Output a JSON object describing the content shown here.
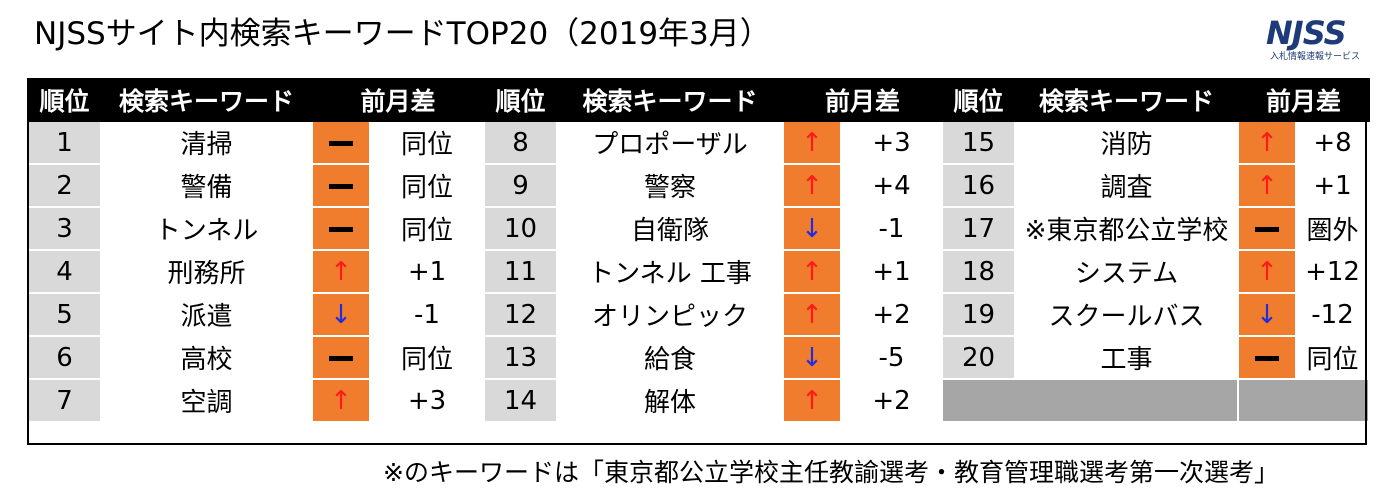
{
  "title": "NJSSサイト内検索キーワードTOP20（2019年3月）",
  "logo": {
    "main": "NJSS",
    "sub": "入札情報速報サービス"
  },
  "headers": {
    "rank": "順位",
    "keyword": "検索キーワード",
    "diff": "前月差"
  },
  "colors": {
    "header_bg": "#000000",
    "rank_bg": "#d9d9d9",
    "arrow_bg": "#f07c2e",
    "up": "#ff1a1a",
    "down": "#1f2de0",
    "empty": "#a6a6a6"
  },
  "columns": [
    {
      "rows": [
        {
          "rank": "1",
          "keyword": "清掃",
          "trend": "same",
          "diff": "同位"
        },
        {
          "rank": "2",
          "keyword": "警備",
          "trend": "same",
          "diff": "同位"
        },
        {
          "rank": "3",
          "keyword": "トンネル",
          "trend": "same",
          "diff": "同位"
        },
        {
          "rank": "4",
          "keyword": "刑務所",
          "trend": "up",
          "diff": "+1"
        },
        {
          "rank": "5",
          "keyword": "派遣",
          "trend": "down",
          "diff": "-1"
        },
        {
          "rank": "6",
          "keyword": "高校",
          "trend": "same",
          "diff": "同位"
        },
        {
          "rank": "7",
          "keyword": "空調",
          "trend": "up",
          "diff": "+3"
        }
      ]
    },
    {
      "rows": [
        {
          "rank": "8",
          "keyword": "プロポーザル",
          "trend": "up",
          "diff": "+3"
        },
        {
          "rank": "9",
          "keyword": "警察",
          "trend": "up",
          "diff": "+4"
        },
        {
          "rank": "10",
          "keyword": "自衛隊",
          "trend": "down",
          "diff": "-1"
        },
        {
          "rank": "11",
          "keyword": "トンネル 工事",
          "trend": "up",
          "diff": "+1"
        },
        {
          "rank": "12",
          "keyword": "オリンピック",
          "trend": "up",
          "diff": "+2"
        },
        {
          "rank": "13",
          "keyword": "給食",
          "trend": "down",
          "diff": "-5"
        },
        {
          "rank": "14",
          "keyword": "解体",
          "trend": "up",
          "diff": "+2"
        }
      ]
    },
    {
      "rows": [
        {
          "rank": "15",
          "keyword": "消防",
          "trend": "up",
          "diff": "+8"
        },
        {
          "rank": "16",
          "keyword": "調査",
          "trend": "up",
          "diff": "+1"
        },
        {
          "rank": "17",
          "keyword": "※東京都公立学校",
          "trend": "same",
          "diff": "圏外"
        },
        {
          "rank": "18",
          "keyword": "システム",
          "trend": "up",
          "diff": "+12"
        },
        {
          "rank": "19",
          "keyword": "スクールバス",
          "trend": "down",
          "diff": "-12"
        },
        {
          "rank": "20",
          "keyword": "工事",
          "trend": "same",
          "diff": "同位"
        },
        null
      ]
    }
  ],
  "arrows": {
    "up": "↑",
    "down": "↓"
  },
  "footnote": "※のキーワードは「東京都公立学校主任教諭選考・教育管理職選考第一次選考」"
}
